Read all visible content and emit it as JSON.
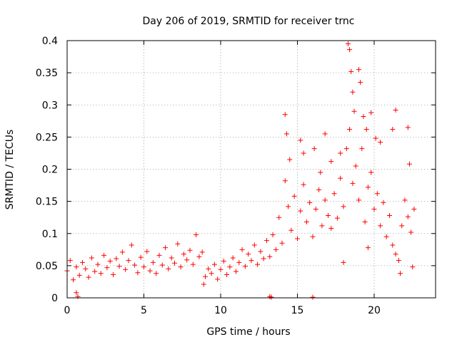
{
  "chart_data": {
    "type": "scatter",
    "title": "Day 206 of 2019, SRMTID for receiver trnc",
    "xlabel": "GPS time / hours",
    "ylabel": "SRMTID / TECUs",
    "xlim": [
      0,
      24
    ],
    "ylim": [
      0,
      0.4
    ],
    "x_ticks": [
      0,
      5,
      10,
      15,
      20
    ],
    "y_ticks": [
      0,
      0.05,
      0.1,
      0.15,
      0.2,
      0.25,
      0.3,
      0.35,
      0.4
    ],
    "x_tick_labels": [
      "0",
      "5",
      "10",
      "15",
      "20"
    ],
    "y_tick_labels": [
      "0",
      "0.05",
      "0.1",
      "0.15",
      "0.2",
      "0.25",
      "0.3",
      "0.35",
      "0.4"
    ],
    "grid": true,
    "marker": "+",
    "color": "#ff0000",
    "series": [
      {
        "name": "SRMTID",
        "points": [
          [
            0.0,
            0.042
          ],
          [
            0.2,
            0.058
          ],
          [
            0.4,
            0.028
          ],
          [
            0.6,
            0.048
          ],
          [
            0.8,
            0.035
          ],
          [
            1.0,
            0.055
          ],
          [
            1.2,
            0.045
          ],
          [
            1.4,
            0.032
          ],
          [
            1.6,
            0.062
          ],
          [
            1.8,
            0.041
          ],
          [
            2.0,
            0.052
          ],
          [
            2.2,
            0.038
          ],
          [
            2.4,
            0.066
          ],
          [
            2.6,
            0.047
          ],
          [
            2.8,
            0.057
          ],
          [
            3.0,
            0.036
          ],
          [
            3.2,
            0.061
          ],
          [
            3.4,
            0.049
          ],
          [
            3.6,
            0.071
          ],
          [
            3.8,
            0.044
          ],
          [
            4.0,
            0.058
          ],
          [
            4.2,
            0.082
          ],
          [
            4.4,
            0.051
          ],
          [
            4.6,
            0.039
          ],
          [
            4.8,
            0.063
          ],
          [
            5.0,
            0.048
          ],
          [
            5.2,
            0.072
          ],
          [
            5.4,
            0.042
          ],
          [
            5.6,
            0.055
          ],
          [
            5.8,
            0.038
          ],
          [
            6.0,
            0.066
          ],
          [
            6.2,
            0.051
          ],
          [
            6.4,
            0.078
          ],
          [
            6.6,
            0.045
          ],
          [
            6.8,
            0.062
          ],
          [
            7.0,
            0.054
          ],
          [
            7.2,
            0.084
          ],
          [
            7.4,
            0.048
          ],
          [
            7.6,
            0.068
          ],
          [
            7.8,
            0.059
          ],
          [
            8.0,
            0.074
          ],
          [
            8.2,
            0.052
          ],
          [
            8.4,
            0.098
          ],
          [
            8.6,
            0.064
          ],
          [
            8.8,
            0.071
          ],
          [
            9.0,
            0.033
          ],
          [
            9.2,
            0.045
          ],
          [
            9.4,
            0.038
          ],
          [
            9.6,
            0.052
          ],
          [
            9.8,
            0.029
          ],
          [
            10.0,
            0.044
          ],
          [
            10.2,
            0.057
          ],
          [
            10.4,
            0.036
          ],
          [
            10.6,
            0.048
          ],
          [
            10.8,
            0.062
          ],
          [
            11.0,
            0.041
          ],
          [
            11.2,
            0.055
          ],
          [
            11.4,
            0.075
          ],
          [
            11.6,
            0.049
          ],
          [
            11.8,
            0.068
          ],
          [
            12.0,
            0.058
          ],
          [
            12.2,
            0.082
          ],
          [
            12.4,
            0.052
          ],
          [
            12.6,
            0.072
          ],
          [
            12.8,
            0.061
          ],
          [
            13.0,
            0.089
          ],
          [
            13.2,
            0.064
          ],
          [
            13.4,
            0.098
          ],
          [
            13.6,
            0.075
          ],
          [
            13.8,
            0.125
          ],
          [
            14.0,
            0.085
          ],
          [
            14.2,
            0.182
          ],
          [
            14.4,
            0.142
          ],
          [
            14.6,
            0.105
          ],
          [
            14.8,
            0.158
          ],
          [
            15.0,
            0.092
          ],
          [
            15.2,
            0.135
          ],
          [
            15.4,
            0.176
          ],
          [
            15.6,
            0.118
          ],
          [
            15.8,
            0.148
          ],
          [
            16.0,
            0.095
          ],
          [
            16.2,
            0.138
          ],
          [
            16.4,
            0.168
          ],
          [
            16.6,
            0.112
          ],
          [
            16.8,
            0.152
          ],
          [
            17.0,
            0.128
          ],
          [
            17.2,
            0.108
          ],
          [
            17.4,
            0.162
          ],
          [
            17.6,
            0.124
          ],
          [
            17.8,
            0.186
          ],
          [
            18.0,
            0.142
          ],
          [
            18.2,
            0.232
          ],
          [
            18.4,
            0.262
          ],
          [
            18.6,
            0.178
          ],
          [
            18.8,
            0.205
          ],
          [
            19.0,
            0.152
          ],
          [
            19.2,
            0.232
          ],
          [
            19.4,
            0.118
          ],
          [
            19.6,
            0.172
          ],
          [
            19.8,
            0.195
          ],
          [
            20.0,
            0.138
          ],
          [
            20.2,
            0.162
          ],
          [
            20.4,
            0.112
          ],
          [
            20.6,
            0.148
          ],
          [
            20.8,
            0.095
          ],
          [
            21.0,
            0.128
          ],
          [
            21.2,
            0.082
          ],
          [
            21.4,
            0.068
          ],
          [
            21.6,
            0.058
          ],
          [
            21.8,
            0.112
          ],
          [
            22.0,
            0.152
          ],
          [
            22.2,
            0.126
          ],
          [
            22.4,
            0.102
          ],
          [
            22.6,
            0.138
          ],
          [
            14.2,
            0.285
          ],
          [
            14.3,
            0.255
          ],
          [
            14.5,
            0.215
          ],
          [
            15.2,
            0.245
          ],
          [
            15.4,
            0.225
          ],
          [
            16.1,
            0.232
          ],
          [
            16.5,
            0.195
          ],
          [
            16.8,
            0.255
          ],
          [
            17.2,
            0.212
          ],
          [
            17.8,
            0.225
          ],
          [
            18.3,
            0.395
          ],
          [
            18.4,
            0.386
          ],
          [
            18.5,
            0.352
          ],
          [
            18.6,
            0.32
          ],
          [
            18.7,
            0.29
          ],
          [
            19.0,
            0.355
          ],
          [
            19.1,
            0.335
          ],
          [
            19.3,
            0.282
          ],
          [
            19.5,
            0.262
          ],
          [
            19.8,
            0.288
          ],
          [
            20.1,
            0.248
          ],
          [
            20.4,
            0.242
          ],
          [
            21.2,
            0.262
          ],
          [
            21.4,
            0.292
          ],
          [
            22.2,
            0.265
          ],
          [
            22.3,
            0.208
          ],
          [
            0.6,
            0.008
          ],
          [
            0.7,
            0.002
          ],
          [
            8.9,
            0.021
          ],
          [
            13.2,
            0.002
          ],
          [
            13.3,
            0.001
          ],
          [
            16.0,
            0.001
          ],
          [
            18.0,
            0.055
          ],
          [
            19.6,
            0.078
          ],
          [
            21.7,
            0.038
          ],
          [
            22.5,
            0.048
          ]
        ]
      }
    ]
  }
}
